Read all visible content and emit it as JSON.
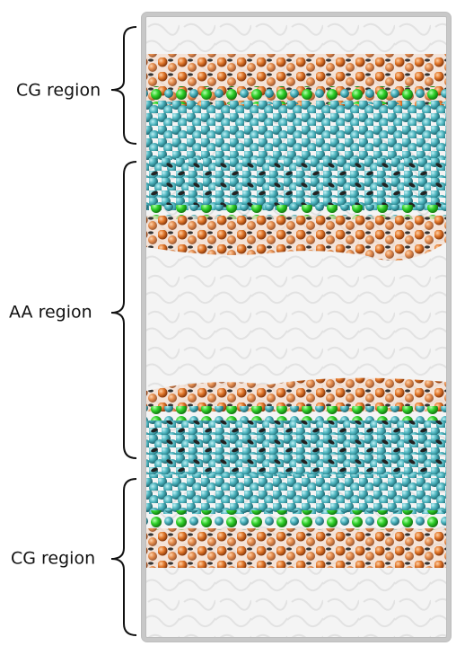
{
  "regions": [
    {
      "label": "CG region"
    },
    {
      "label": "AA region"
    },
    {
      "label": "CG region"
    }
  ]
}
